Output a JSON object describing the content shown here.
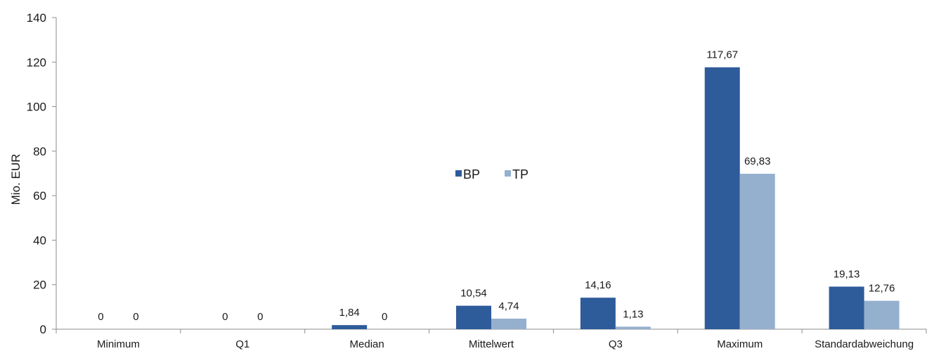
{
  "chart_data": {
    "type": "bar",
    "ylabel": "Mio. EUR",
    "ylim": [
      0,
      140
    ],
    "yticks": [
      "0",
      "20",
      "40",
      "60",
      "80",
      "100",
      "120",
      "140"
    ],
    "ytick_values": [
      0,
      20,
      40,
      60,
      80,
      100,
      120,
      140
    ],
    "categories": [
      "Minimum",
      "Q1",
      "Median",
      "Mittelwert",
      "Q3",
      "Maximum",
      "Standardabweichung"
    ],
    "series": [
      {
        "name": "BP",
        "color": "#2e5b9a",
        "values": [
          0,
          0,
          1.84,
          10.54,
          14.16,
          117.67,
          19.13
        ],
        "labels": [
          "0",
          "0",
          "1,84",
          "10,54",
          "14,16",
          "117,67",
          "19,13"
        ]
      },
      {
        "name": "TP",
        "color": "#95b0cf",
        "values": [
          0,
          0,
          0,
          4.74,
          1.13,
          69.83,
          12.76
        ],
        "labels": [
          "0",
          "0",
          "0",
          "4,74",
          "1,13",
          "69,83",
          "12,76"
        ]
      }
    ],
    "legend": "center",
    "grid": false
  }
}
